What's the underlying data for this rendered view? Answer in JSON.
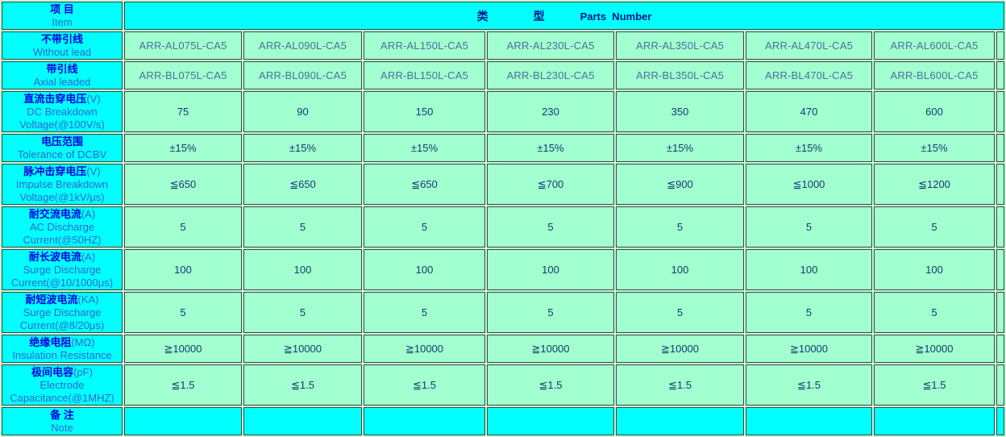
{
  "colors": {
    "header_bg": "#00ffff",
    "cell_bg": "#a2ffd0",
    "grid_gap": "#c6ffd9",
    "border": "#394440",
    "label_zh": "#0000e0",
    "label_en": "#3366cc",
    "header_text": "#001489",
    "part_text": "#4a6f9b",
    "value_text": "#123c6b"
  },
  "header": {
    "item_zh": "项 目",
    "item_en": "Item",
    "type_zh_1": "类",
    "type_zh_2": "型",
    "type_en": "Parts  Number"
  },
  "rows": [
    {
      "key": "without-lead",
      "zh": "不带引线",
      "zh_suffix": "",
      "en": "Without lead",
      "kind": "part",
      "values": [
        "ARR-AL075L-CA5",
        "ARR-AL090L-CA5",
        "ARR-AL150L-CA5",
        "ARR-AL230L-CA5",
        "ARR-AL350L-CA5",
        "ARR-AL470L-CA5",
        "ARR-AL600L-CA5"
      ]
    },
    {
      "key": "axial-leaded",
      "zh": "带引线",
      "zh_suffix": "",
      "en": "Axial leaded",
      "kind": "part",
      "values": [
        "ARR-BL075L-CA5",
        "ARR-BL090L-CA5",
        "ARR-BL150L-CA5",
        "ARR-BL230L-CA5",
        "ARR-BL350L-CA5",
        "ARR-BL470L-CA5",
        "ARR-BL600L-CA5"
      ]
    },
    {
      "key": "dc-breakdown-voltage",
      "zh": "直流击穿电压",
      "zh_suffix": "(V)",
      "en": "DC Breakdown Voltage(@100V/s)",
      "kind": "value",
      "values": [
        "75",
        "90",
        "150",
        "230",
        "350",
        "470",
        "600"
      ]
    },
    {
      "key": "tolerance-of-dcbv",
      "zh": "电压范围",
      "zh_suffix": "",
      "en": "Tolerance of DCBV",
      "kind": "value",
      "values": [
        "±15%",
        "±15%",
        "±15%",
        "±15%",
        "±15%",
        "±15%",
        "±15%"
      ]
    },
    {
      "key": "impulse-breakdown-voltage",
      "zh": "脉冲击穿电压",
      "zh_suffix": "(V)",
      "en": "Impulse Breakdown Voltage(@1kV/μs)",
      "kind": "value",
      "values": [
        "≦650",
        "≦650",
        "≦650",
        "≦700",
        "≦900",
        "≦1000",
        "≦1200"
      ]
    },
    {
      "key": "ac-discharge-current",
      "zh": "耐交流电流",
      "zh_suffix": "(A)",
      "en": "AC Discharge Current(@50HZ)",
      "kind": "value",
      "values": [
        "5",
        "5",
        "5",
        "5",
        "5",
        "5",
        "5"
      ]
    },
    {
      "key": "surge-discharge-current-long",
      "zh": "耐长波电流",
      "zh_suffix": "(A)",
      "en": "Surge Discharge Current(@10/1000μs)",
      "kind": "value",
      "values": [
        "100",
        "100",
        "100",
        "100",
        "100",
        "100",
        "100"
      ]
    },
    {
      "key": "surge-discharge-current-short",
      "zh": "耐短波电流",
      "zh_suffix": "(KA)",
      "en": "Surge Discharge Current(@8/20μs)",
      "kind": "value",
      "values": [
        "5",
        "5",
        "5",
        "5",
        "5",
        "5",
        "5"
      ]
    },
    {
      "key": "insulation-resistance",
      "zh": "绝缘电阻",
      "zh_suffix": "(MΩ)",
      "en": "Insulation Resistance",
      "kind": "value",
      "values": [
        "≧10000",
        "≧10000",
        "≧10000",
        "≧10000",
        "≧10000",
        "≧10000",
        "≧10000"
      ]
    },
    {
      "key": "electrode-capacitance",
      "zh": "极间电容",
      "zh_suffix": "(pF)",
      "en": "Electrode Capacitance(@1MHZ)",
      "kind": "value",
      "values": [
        "≦1.5",
        "≦1.5",
        "≦1.5",
        "≦1.5",
        "≦1.5",
        "≦1.5",
        "≦1.5"
      ]
    },
    {
      "key": "note",
      "zh": "备 注",
      "zh_suffix": "",
      "en": "Note",
      "kind": "note",
      "values": [
        "",
        "",
        "",
        "",
        "",
        "",
        ""
      ]
    }
  ]
}
